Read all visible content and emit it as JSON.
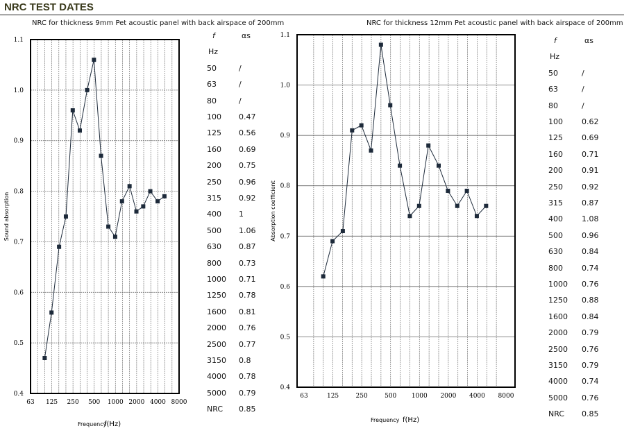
{
  "page": {
    "title": "NRC TEST DATES"
  },
  "chart_data": [
    {
      "type": "line",
      "title": "NRC for thickness 9mm Pet acoustic panel with back airspace of 200mm",
      "xlabel": "Frequency",
      "xunit": "f(Hz)",
      "ylabel": "Sound absorption",
      "ylim": [
        0.4,
        1.1
      ],
      "yticks": [
        "0.4",
        "0.5",
        "0.6",
        "0.7",
        "0.8",
        "0.9",
        "1.0",
        "1.1"
      ],
      "xticks": [
        "63",
        "125",
        "250",
        "500",
        "1000",
        "2000",
        "4000",
        "8000"
      ],
      "x": [
        100,
        125,
        160,
        200,
        250,
        315,
        400,
        500,
        630,
        800,
        1000,
        1250,
        1600,
        2000,
        2500,
        3150,
        4000,
        5000
      ],
      "values": [
        0.47,
        0.56,
        0.69,
        0.75,
        0.96,
        0.92,
        1,
        1.06,
        0.87,
        0.73,
        0.71,
        0.78,
        0.81,
        0.76,
        0.77,
        0.8,
        0.78,
        0.79
      ]
    },
    {
      "type": "line",
      "title": "NRC for thickness 12mm Pet acoustic panel with back airspace of 200mm",
      "xlabel": "Frequency",
      "xunit": "f(Hz)",
      "ylabel": "Absorption coefficient",
      "ylim": [
        0.4,
        1.1
      ],
      "yticks": [
        "0.4",
        "0.5",
        "0.6",
        "0.7",
        "0.8",
        "0.9",
        "1.0",
        "1.1"
      ],
      "xticks": [
        "63",
        "125",
        "250",
        "500",
        "1000",
        "2000",
        "4000",
        "8000"
      ],
      "x": [
        100,
        125,
        160,
        200,
        250,
        315,
        400,
        500,
        630,
        800,
        1000,
        1250,
        1600,
        2000,
        2500,
        3150,
        4000,
        5000
      ],
      "values": [
        0.62,
        0.69,
        0.71,
        0.91,
        0.92,
        0.87,
        1.08,
        0.96,
        0.84,
        0.74,
        0.76,
        0.88,
        0.84,
        0.79,
        0.76,
        0.79,
        0.74,
        0.76
      ]
    }
  ],
  "tables": [
    {
      "head": [
        "f",
        "αs"
      ],
      "unit": "Hz",
      "rows": [
        [
          "50",
          "/"
        ],
        [
          "63",
          "/"
        ],
        [
          "80",
          "/"
        ],
        [
          "100",
          "0.47"
        ],
        [
          "125",
          "0.56"
        ],
        [
          "160",
          "0.69"
        ],
        [
          "200",
          "0.75"
        ],
        [
          "250",
          "0.96"
        ],
        [
          "315",
          "0.92"
        ],
        [
          "400",
          "1"
        ],
        [
          "500",
          "1.06"
        ],
        [
          "630",
          "0.87"
        ],
        [
          "800",
          "0.73"
        ],
        [
          "1000",
          "0.71"
        ],
        [
          "1250",
          "0.78"
        ],
        [
          "1600",
          "0.81"
        ],
        [
          "2000",
          "0.76"
        ],
        [
          "2500",
          "0.77"
        ],
        [
          "3150",
          "0.8"
        ],
        [
          "4000",
          "0.78"
        ],
        [
          "5000",
          "0.79"
        ],
        [
          "NRC",
          "0.85"
        ]
      ]
    },
    {
      "head": [
        "f",
        "αs"
      ],
      "unit": "Hz",
      "rows": [
        [
          "50",
          "/"
        ],
        [
          "63",
          "/"
        ],
        [
          "80",
          "/"
        ],
        [
          "100",
          "0.62"
        ],
        [
          "125",
          "0.69"
        ],
        [
          "160",
          "0.71"
        ],
        [
          "200",
          "0.91"
        ],
        [
          "250",
          "0.92"
        ],
        [
          "315",
          "0.87"
        ],
        [
          "400",
          "1.08"
        ],
        [
          "500",
          "0.96"
        ],
        [
          "630",
          "0.84"
        ],
        [
          "800",
          "0.74"
        ],
        [
          "1000",
          "0.76"
        ],
        [
          "1250",
          "0.88"
        ],
        [
          "1600",
          "0.84"
        ],
        [
          "2000",
          "0.79"
        ],
        [
          "2500",
          "0.76"
        ],
        [
          "3150",
          "0.79"
        ],
        [
          "4000",
          "0.74"
        ],
        [
          "5000",
          "0.76"
        ],
        [
          "NRC",
          "0.85"
        ]
      ]
    }
  ]
}
